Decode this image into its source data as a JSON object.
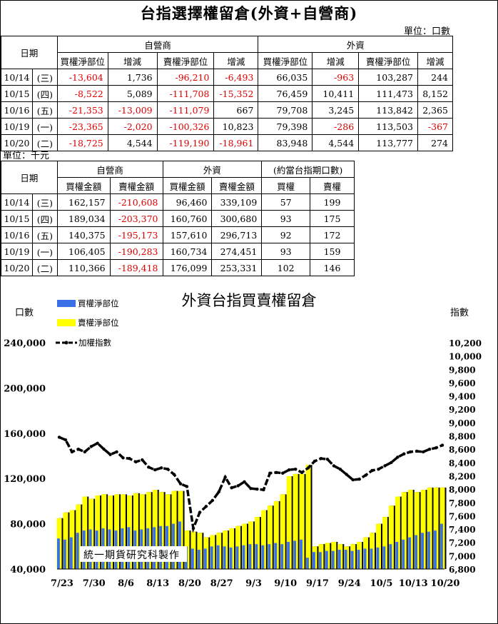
{
  "header": {
    "title": "台指選擇權留倉(外資+自營商)",
    "unit_top": "單位：口數",
    "unit_middle": "單位：千元"
  },
  "table1": {
    "date_header": "日期",
    "group_dealer": "自營商",
    "group_foreign": "外資",
    "sub_headers": [
      "買權淨部位",
      "增減",
      "賣權淨部位",
      "增減",
      "買權淨部位",
      "增減",
      "賣權淨部位",
      "增減"
    ],
    "rows": [
      {
        "date": "10/14",
        "weekday": "(三)",
        "cells": [
          "-13,604",
          "1,736",
          "-96,210",
          "-6,493",
          "66,035",
          "-963",
          "103,287",
          "244"
        ]
      },
      {
        "date": "10/15",
        "weekday": "(四)",
        "cells": [
          "-8,522",
          "5,089",
          "-111,708",
          "-15,352",
          "76,459",
          "10,411",
          "111,473",
          "8,152"
        ]
      },
      {
        "date": "10/16",
        "weekday": "(五)",
        "cells": [
          "-21,353",
          "-13,009",
          "-111,079",
          "667",
          "79,708",
          "3,245",
          "113,842",
          "2,365"
        ]
      },
      {
        "date": "10/19",
        "weekday": "(一)",
        "cells": [
          "-23,365",
          "-2,020",
          "-100,326",
          "10,823",
          "79,398",
          "-286",
          "113,503",
          "-367"
        ]
      },
      {
        "date": "10/20",
        "weekday": "(二)",
        "cells": [
          "-18,725",
          "4,544",
          "-119,190",
          "-18,961",
          "83,948",
          "4,544",
          "113,777",
          "274"
        ]
      }
    ]
  },
  "table2": {
    "date_header": "日期",
    "group_dealer": "自營商",
    "group_foreign": "外資",
    "group_equiv": "(約當台指期口數)",
    "sub_headers": [
      "買權金額",
      "賣權金額",
      "買權金額",
      "賣權金額",
      "買權",
      "賣權"
    ],
    "rows": [
      {
        "date": "10/14",
        "weekday": "(三)",
        "cells": [
          "162,157",
          "-210,608",
          "96,460",
          "339,109",
          "57",
          "199"
        ]
      },
      {
        "date": "10/15",
        "weekday": "(四)",
        "cells": [
          "189,034",
          "-203,370",
          "160,760",
          "300,680",
          "93",
          "175"
        ]
      },
      {
        "date": "10/16",
        "weekday": "(五)",
        "cells": [
          "140,375",
          "-195,173",
          "157,610",
          "296,713",
          "92",
          "172"
        ]
      },
      {
        "date": "10/19",
        "weekday": "(一)",
        "cells": [
          "106,405",
          "-190,283",
          "160,734",
          "274,451",
          "93",
          "159"
        ]
      },
      {
        "date": "10/20",
        "weekday": "(二)",
        "cells": [
          "110,366",
          "-189,418",
          "176,099",
          "253,331",
          "102",
          "146"
        ]
      }
    ]
  },
  "colors": {
    "call": "#3a6fe8",
    "put": "#ffff00",
    "index": "#000000",
    "negative": "#e00000"
  },
  "chart_data": {
    "type": "bar",
    "title": "外資台指買賣權留倉",
    "ylabel_left": "口數",
    "ylabel_right": "指數",
    "watermark": "統一期貨研究科製作",
    "ylim": [
      40000,
      240000
    ],
    "y_ticks": [
      "40,000",
      "80,000",
      "120,000",
      "160,000",
      "200,000",
      "240,000"
    ],
    "y2lim": [
      6800,
      10200
    ],
    "y2_ticks": [
      "6,800",
      "7,000",
      "7,200",
      "7,400",
      "7,600",
      "7,800",
      "8,000",
      "8,200",
      "8,400",
      "8,600",
      "8,800",
      "9,000",
      "9,200",
      "9,400",
      "9,600",
      "9,800",
      "10,000",
      "10,200"
    ],
    "x_ticks": [
      "7/23",
      "7/30",
      "8/6",
      "8/13",
      "8/20",
      "8/27",
      "9/3",
      "9/10",
      "9/17",
      "9/24",
      "10/5",
      "10/13",
      "10/20"
    ],
    "x_tick_index": [
      0,
      5,
      10,
      15,
      20,
      25,
      30,
      35,
      40,
      45,
      50,
      55,
      60
    ],
    "legend": [
      "買權淨部位",
      "賣權淨部位",
      "加權指數"
    ],
    "series": [
      {
        "name": "買權淨部位",
        "values": [
          67000,
          66000,
          68000,
          72000,
          74000,
          75000,
          74000,
          76000,
          75000,
          74000,
          76000,
          77000,
          74000,
          75000,
          76000,
          77000,
          78000,
          78000,
          80000,
          82000,
          60000,
          58000,
          57000,
          58000,
          60000,
          61000,
          60000,
          59000,
          60000,
          61000,
          62000,
          62000,
          61000,
          62000,
          63000,
          62000,
          64000,
          65000,
          66000,
          50000,
          55000,
          55000,
          56000,
          56000,
          57000,
          57000,
          56000,
          57000,
          58000,
          58000,
          59000,
          60000,
          62000,
          64000,
          66000,
          68000,
          70000,
          72000,
          73000,
          74000,
          80000
        ]
      },
      {
        "name": "賣權淨部位",
        "values": [
          85000,
          90000,
          92000,
          97000,
          104000,
          102000,
          105000,
          106000,
          105000,
          106000,
          106000,
          105000,
          107000,
          106000,
          108000,
          110000,
          108000,
          106000,
          109000,
          109000,
          74000,
          73000,
          72000,
          68000,
          70000,
          72000,
          74000,
          76000,
          78000,
          80000,
          82000,
          86000,
          92000,
          96000,
          100000,
          106000,
          122000,
          124000,
          124000,
          132000,
          60000,
          62000,
          63000,
          64000,
          62000,
          60000,
          62000,
          64000,
          68000,
          72000,
          80000,
          86000,
          96000,
          104000,
          108000,
          110000,
          108000,
          110000,
          112000,
          112000,
          112000
        ]
      },
      {
        "name": "加權指數",
        "values": [
          8780,
          8740,
          8560,
          8600,
          8560,
          8640,
          8690,
          8600,
          8520,
          8560,
          8470,
          8460,
          8410,
          8440,
          8330,
          8290,
          8320,
          8300,
          8220,
          8080,
          8040,
          7410,
          7650,
          7740,
          7830,
          7960,
          8180,
          8020,
          8050,
          8110,
          8010,
          8000,
          7990,
          8240,
          8250,
          8240,
          8290,
          8300,
          8250,
          8320,
          8420,
          8460,
          8450,
          8350,
          8300,
          8220,
          8140,
          8150,
          8210,
          8280,
          8300,
          8350,
          8400,
          8480,
          8530,
          8560,
          8570,
          8560,
          8600,
          8620,
          8660
        ]
      }
    ]
  }
}
